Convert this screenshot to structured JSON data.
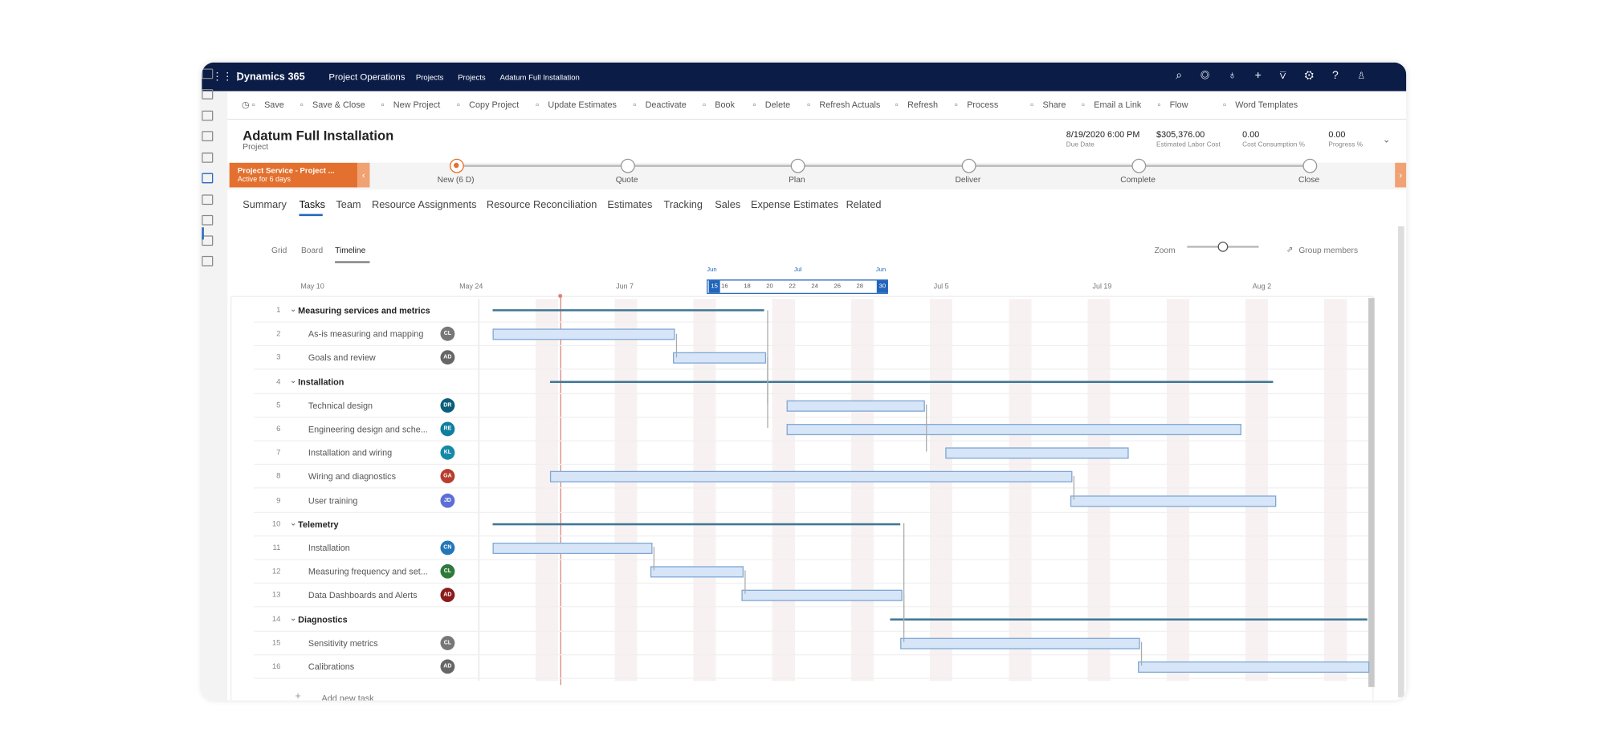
{
  "nav": {
    "app": "Dynamics 365",
    "area": "Project Operations",
    "breadcrumb": [
      "Projects",
      "Projects",
      "Adatum Full Installation"
    ]
  },
  "commands": [
    "Save",
    "Save & Close",
    "New Project",
    "Copy Project",
    "Update Estimates",
    "Deactivate",
    "Book",
    "Delete",
    "Refresh Actuals",
    "Refresh",
    "Process",
    "Share",
    "Email a Link",
    "Flow",
    "Word Templates"
  ],
  "header": {
    "title": "Adatum Full Installation",
    "entity": "Project",
    "fields": [
      {
        "value": "8/19/2020 6:00 PM",
        "label": "Due Date"
      },
      {
        "value": "$305,376.00",
        "label": "Estimated Labor Cost"
      },
      {
        "value": "0.00",
        "label": "Cost Consumption %"
      },
      {
        "value": "0.00",
        "label": "Progress %"
      }
    ]
  },
  "process": {
    "name": "Project Service - Project ...",
    "status": "Active for 6 days",
    "stages": [
      "New  (6 D)",
      "Quote",
      "Plan",
      "Deliver",
      "Complete",
      "Close"
    ]
  },
  "tabs": [
    "Summary",
    "Tasks",
    "Team",
    "Resource Assignments",
    "Resource Reconciliation",
    "Estimates",
    "Tracking",
    "Sales",
    "Expense Estimates",
    "Related"
  ],
  "views": [
    "Grid",
    "Board",
    "Timeline"
  ],
  "zoom": "Zoom",
  "group": "Group members",
  "timeline": {
    "dates": [
      "May 10",
      "May 24",
      "Jun 7",
      "Jul 5",
      "Jul 19",
      "Aug 2"
    ],
    "months": [
      "Jun",
      "Jul",
      "Jun"
    ],
    "days": [
      "15",
      "16",
      "18",
      "20",
      "22",
      "24",
      "26",
      "28",
      "30"
    ]
  },
  "tasks": [
    {
      "num": "1",
      "name": "Measuring services and metrics",
      "summary": true
    },
    {
      "num": "2",
      "name": "As-is measuring and mapping",
      "avatar": "CL"
    },
    {
      "num": "3",
      "name": "Goals and review",
      "avatar": "AD"
    },
    {
      "num": "4",
      "name": "Installation",
      "summary": true
    },
    {
      "num": "5",
      "name": "Technical design",
      "avatar": "DR"
    },
    {
      "num": "6",
      "name": "Engineering design and sche...",
      "avatar": "RE"
    },
    {
      "num": "7",
      "name": "Installation and wiring",
      "avatar": "KL"
    },
    {
      "num": "8",
      "name": "Wiring and diagnostics",
      "avatar": "GA"
    },
    {
      "num": "9",
      "name": "User training",
      "avatar": "JD"
    },
    {
      "num": "10",
      "name": "Telemetry",
      "summary": true
    },
    {
      "num": "11",
      "name": "Installation",
      "avatar": "CN"
    },
    {
      "num": "12",
      "name": "Measuring frequency and set...",
      "avatar": "CL"
    },
    {
      "num": "13",
      "name": "Data Dashboards and Alerts",
      "avatar": "AD"
    },
    {
      "num": "14",
      "name": "Diagnostics",
      "summary": true
    },
    {
      "num": "15",
      "name": "Sensitivity metrics",
      "avatar": "CL"
    },
    {
      "num": "16",
      "name": "Calibrations",
      "avatar": "AD"
    }
  ],
  "add_task": "Add new task"
}
